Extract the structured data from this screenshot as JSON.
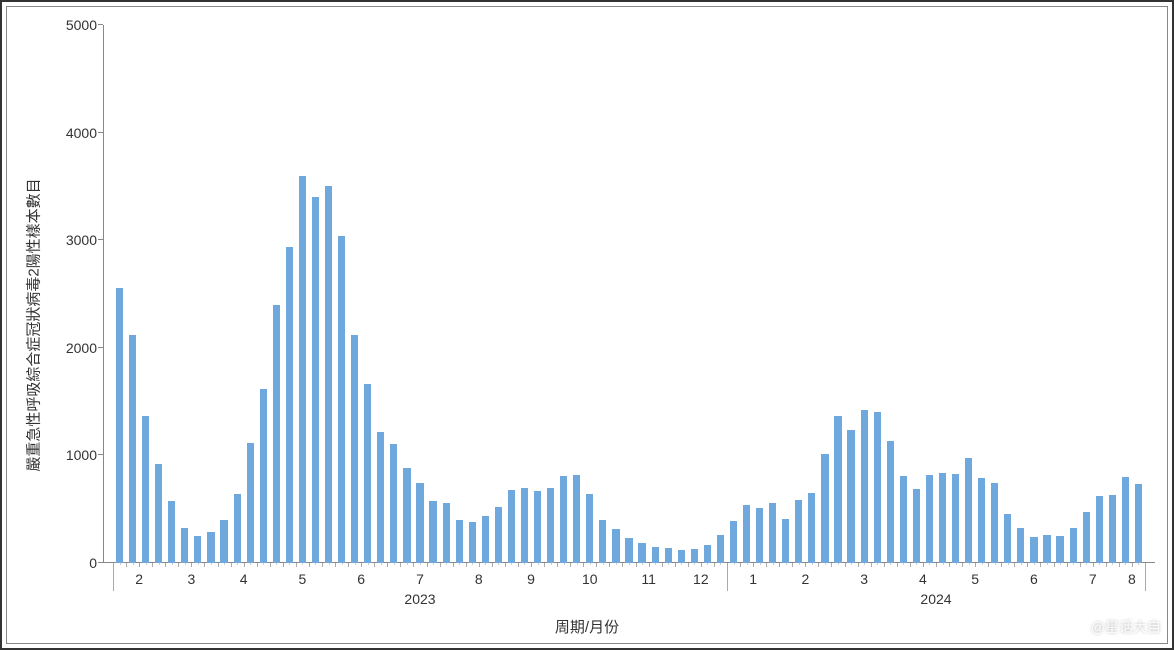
{
  "chart": {
    "type": "bar",
    "ylabel": "嚴重急性呼吸綜合症冠狀病毒2陽性樣本數目",
    "xlabel": "周期/月份",
    "ylim": [
      0,
      5000
    ],
    "ytick_step": 1000,
    "yticks": [
      0,
      1000,
      2000,
      3000,
      4000,
      5000
    ],
    "bar_color": "#6fa8dc",
    "axis_color": "#888888",
    "text_color": "#333333",
    "background_color": "#ffffff",
    "label_fontsize": 15,
    "tick_fontsize": 14,
    "bar_width_ratio": 0.55,
    "months": [
      {
        "label": "2",
        "year": "2023",
        "values": [
          2560,
          2120,
          1370,
          920
        ]
      },
      {
        "label": "3",
        "year": "2023",
        "values": [
          580,
          330,
          250,
          290
        ]
      },
      {
        "label": "4",
        "year": "2023",
        "values": [
          400,
          640,
          1120,
          1620
        ]
      },
      {
        "label": "5",
        "year": "2023",
        "values": [
          2400,
          2940,
          3600,
          3400,
          3500
        ]
      },
      {
        "label": "6",
        "year": "2023",
        "values": [
          3040,
          2120,
          1660,
          1220
        ]
      },
      {
        "label": "7",
        "year": "2023",
        "values": [
          1110,
          880,
          740,
          580,
          560
        ]
      },
      {
        "label": "8",
        "year": "2023",
        "values": [
          400,
          380,
          440,
          520
        ]
      },
      {
        "label": "9",
        "year": "2023",
        "values": [
          680,
          700,
          670,
          700
        ]
      },
      {
        "label": "10",
        "year": "2023",
        "values": [
          810,
          820,
          640,
          400,
          320
        ]
      },
      {
        "label": "11",
        "year": "2023",
        "values": [
          230,
          190,
          150,
          140
        ]
      },
      {
        "label": "12",
        "year": "2023",
        "values": [
          120,
          130,
          170,
          260
        ]
      },
      {
        "label": "1",
        "year": "2024",
        "values": [
          390,
          540,
          510,
          560
        ]
      },
      {
        "label": "2",
        "year": "2024",
        "values": [
          410,
          590,
          650,
          1010
        ]
      },
      {
        "label": "3",
        "year": "2024",
        "values": [
          1370,
          1240,
          1420,
          1400,
          1130
        ]
      },
      {
        "label": "4",
        "year": "2024",
        "values": [
          810,
          690,
          820,
          840
        ]
      },
      {
        "label": "5",
        "year": "2024",
        "values": [
          830,
          980,
          790,
          740
        ]
      },
      {
        "label": "6",
        "year": "2024",
        "values": [
          460,
          330,
          240,
          260,
          250
        ]
      },
      {
        "label": "7",
        "year": "2024",
        "values": [
          330,
          470,
          620,
          630
        ]
      },
      {
        "label": "8",
        "year": "2024",
        "values": [
          800,
          730
        ]
      }
    ],
    "year_labels": [
      "2023",
      "2024"
    ]
  },
  "watermark": {
    "text": "@星话大自"
  }
}
